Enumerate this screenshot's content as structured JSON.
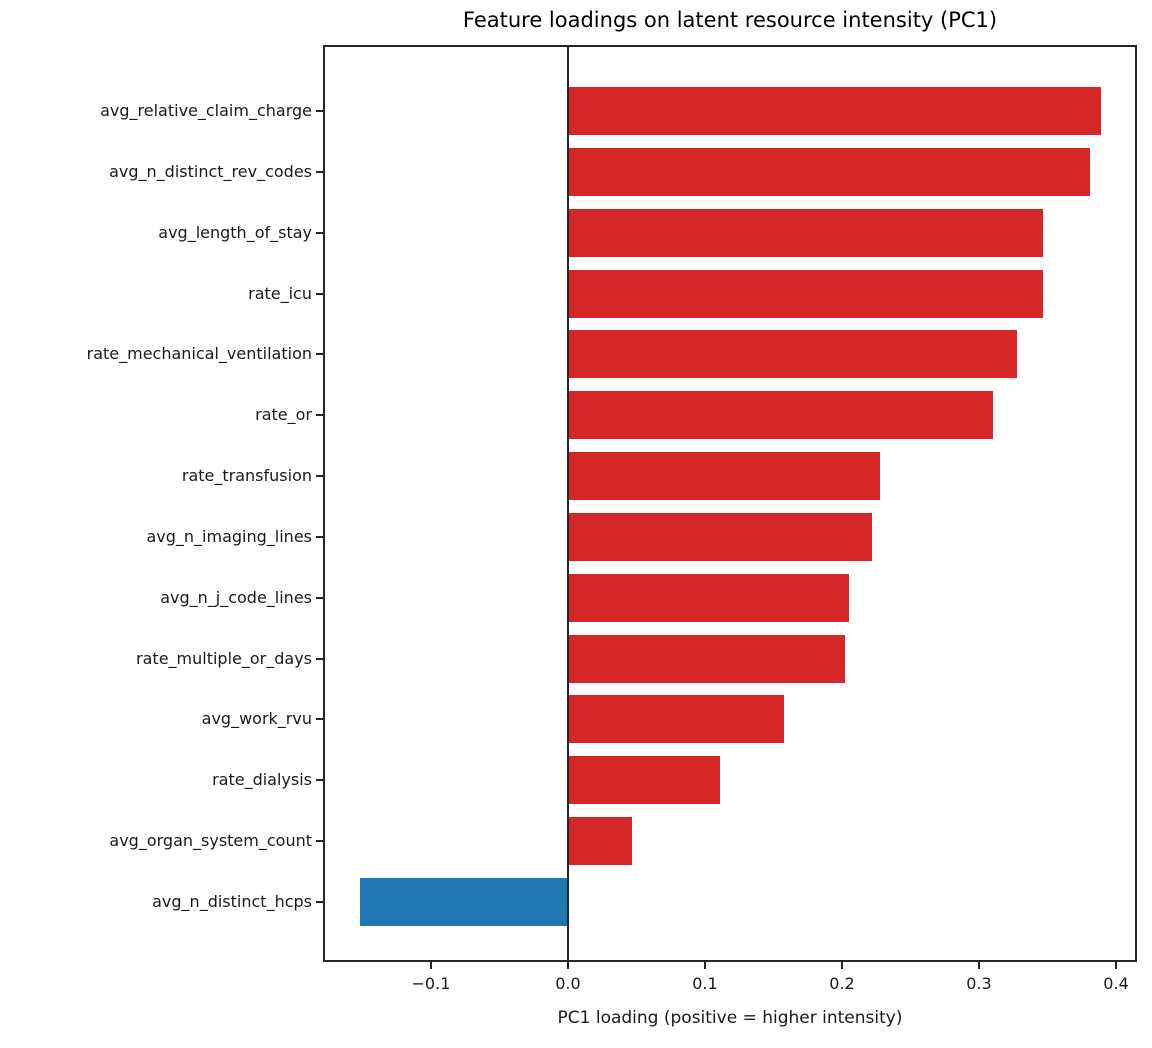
{
  "chart_data": {
    "type": "bar",
    "orientation": "horizontal",
    "title": "Feature loadings on latent resource intensity (PC1)",
    "xlabel": "PC1 loading (positive = higher intensity)",
    "ylabel": "",
    "categories": [
      "avg_relative_claim_charge",
      "avg_n_distinct_rev_codes",
      "avg_length_of_stay",
      "rate_icu",
      "rate_mechanical_ventilation",
      "rate_or",
      "rate_transfusion",
      "avg_n_imaging_lines",
      "avg_n_j_code_lines",
      "rate_multiple_or_days",
      "avg_work_rvu",
      "rate_dialysis",
      "avg_organ_system_count",
      "avg_n_distinct_hcps"
    ],
    "values": [
      0.389,
      0.381,
      0.347,
      0.347,
      0.328,
      0.31,
      0.228,
      0.222,
      0.205,
      0.202,
      0.158,
      0.111,
      0.047,
      -0.152
    ],
    "xlim": [
      -0.1788,
      0.4153
    ],
    "xticks": [
      -0.1,
      0.0,
      0.1,
      0.2,
      0.3,
      0.4
    ],
    "xtick_labels": [
      "−0.1",
      "0.0",
      "0.1",
      "0.2",
      "0.3",
      "0.4"
    ],
    "positive_color": "#d62728",
    "negative_color": "#1f77b4",
    "zero_line": true,
    "grid": false,
    "legend": null
  }
}
